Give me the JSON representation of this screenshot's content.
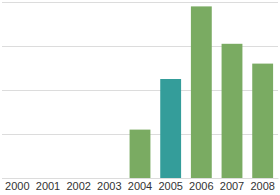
{
  "chart_data": {
    "type": "bar",
    "categories": [
      "2000",
      "2001",
      "2002",
      "2003",
      "2004",
      "2005",
      "2006",
      "2007",
      "2008"
    ],
    "values": [
      null,
      null,
      null,
      null,
      1.1,
      2.25,
      3.9,
      3.05,
      2.6
    ],
    "colors": [
      "#7aab62",
      "#7aab62",
      "#7aab62",
      "#7aab62",
      "#7aab62",
      "#349d9a",
      "#7aab62",
      "#7aab62",
      "#7aab62"
    ],
    "ylim": [
      0,
      4
    ],
    "yticks": [
      0,
      1,
      2,
      3,
      4
    ],
    "grid": true,
    "tick_labels": "x"
  }
}
